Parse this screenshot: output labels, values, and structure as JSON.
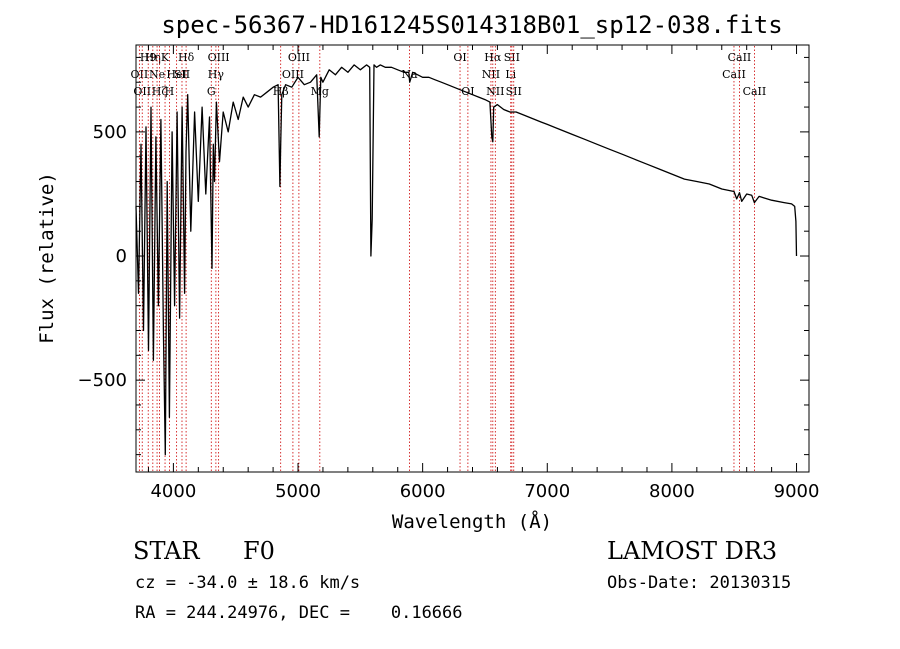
{
  "chart_data": {
    "type": "line",
    "title": "spec-56367-HD161245S014318B01_sp12-038.fits",
    "xlabel": "Wavelength (Å)",
    "ylabel": "Flux (relative)",
    "xlim": [
      3700,
      9100
    ],
    "ylim": [
      -870,
      850
    ],
    "x_ticks": [
      4000,
      5000,
      6000,
      7000,
      8000,
      9000
    ],
    "y_ticks": [
      -500,
      0,
      500
    ],
    "grid": false,
    "series": [
      {
        "name": "flux",
        "x": [
          3700,
          3720,
          3740,
          3760,
          3780,
          3800,
          3820,
          3840,
          3860,
          3880,
          3900,
          3920,
          3935,
          3950,
          3968,
          3990,
          4010,
          4030,
          4050,
          4070,
          4090,
          4101,
          4115,
          4140,
          4170,
          4200,
          4230,
          4260,
          4290,
          4310,
          4320,
          4330,
          4345,
          4370,
          4400,
          4440,
          4480,
          4520,
          4560,
          4600,
          4650,
          4700,
          4750,
          4800,
          4840,
          4855,
          4861,
          4870,
          4900,
          4950,
          5000,
          5050,
          5100,
          5150,
          5170,
          5183,
          5200,
          5250,
          5300,
          5350,
          5400,
          5450,
          5500,
          5550,
          5575,
          5585,
          5595,
          5610,
          5630,
          5660,
          5700,
          5750,
          5800,
          5850,
          5889,
          5896,
          5920,
          5960,
          6000,
          6050,
          6100,
          6150,
          6200,
          6250,
          6300,
          6350,
          6400,
          6450,
          6500,
          6540,
          6555,
          6563,
          6570,
          6600,
          6650,
          6700,
          6750,
          6800,
          6850,
          6900,
          6950,
          7000,
          7100,
          7200,
          7300,
          7400,
          7500,
          7600,
          7700,
          7800,
          7900,
          8000,
          8100,
          8200,
          8300,
          8400,
          8498,
          8520,
          8542,
          8560,
          8600,
          8640,
          8662,
          8700,
          8800,
          8900,
          8960,
          8985,
          8995,
          9000
        ],
        "values": [
          200,
          -150,
          450,
          -300,
          520,
          -380,
          600,
          -420,
          480,
          -200,
          550,
          -300,
          -800,
          300,
          -650,
          500,
          -200,
          580,
          -250,
          600,
          -150,
          420,
          650,
          100,
          580,
          220,
          600,
          250,
          560,
          -50,
          450,
          300,
          620,
          380,
          580,
          500,
          620,
          550,
          640,
          600,
          650,
          640,
          660,
          680,
          690,
          280,
          450,
          650,
          690,
          680,
          720,
          690,
          700,
          730,
          480,
          720,
          700,
          750,
          730,
          760,
          740,
          770,
          750,
          770,
          760,
          0,
          150,
          770,
          760,
          770,
          760,
          760,
          750,
          740,
          740,
          700,
          740,
          730,
          720,
          720,
          710,
          700,
          690,
          680,
          670,
          660,
          650,
          640,
          630,
          620,
          480,
          460,
          600,
          610,
          590,
          580,
          580,
          570,
          560,
          550,
          540,
          530,
          510,
          490,
          470,
          450,
          430,
          410,
          390,
          370,
          350,
          330,
          310,
          300,
          290,
          270,
          260,
          230,
          255,
          220,
          250,
          245,
          215,
          240,
          225,
          215,
          210,
          200,
          140,
          0
        ]
      }
    ],
    "line_markers": [
      {
        "x": 3727,
        "label": "OII",
        "row": 1
      },
      {
        "x": 3750,
        "label": "OII",
        "row": 2
      },
      {
        "x": 3798,
        "label": "H9",
        "row": 0
      },
      {
        "x": 3835,
        "label": "Hη",
        "row": 0
      },
      {
        "x": 3869,
        "label": "Ne",
        "row": 1
      },
      {
        "x": 3889,
        "label": "Hζ",
        "row": 2
      },
      {
        "x": 3933,
        "label": "K",
        "row": 0
      },
      {
        "x": 3968,
        "label": "H",
        "row": 2
      },
      {
        "x": 4026,
        "label": "HeI",
        "row": 1
      },
      {
        "x": 4069,
        "label": "SII",
        "row": 1
      },
      {
        "x": 4102,
        "label": "Hδ",
        "row": 0
      },
      {
        "x": 4304,
        "label": "G",
        "row": 2
      },
      {
        "x": 4341,
        "label": "Hγ",
        "row": 1
      },
      {
        "x": 4363,
        "label": "OIII",
        "row": 0
      },
      {
        "x": 4861,
        "label": "Hβ",
        "row": 2
      },
      {
        "x": 4959,
        "label": "OIII",
        "row": 1
      },
      {
        "x": 5007,
        "label": "OIII",
        "row": 0
      },
      {
        "x": 5175,
        "label": "Mg",
        "row": 2
      },
      {
        "x": 5894,
        "label": "Na",
        "row": 1
      },
      {
        "x": 6300,
        "label": "OI",
        "row": 0
      },
      {
        "x": 6363,
        "label": "OI",
        "row": 2
      },
      {
        "x": 6548,
        "label": "NII",
        "row": 1
      },
      {
        "x": 6563,
        "label": "Hα",
        "row": 0
      },
      {
        "x": 6583,
        "label": "NII",
        "row": 2
      },
      {
        "x": 6707,
        "label": "Li",
        "row": 1
      },
      {
        "x": 6716,
        "label": "SII",
        "row": 0
      },
      {
        "x": 6731,
        "label": "SII",
        "row": 2
      },
      {
        "x": 8498,
        "label": "CaII",
        "row": 1
      },
      {
        "x": 8542,
        "label": "CaII",
        "row": 0
      },
      {
        "x": 8662,
        "label": "CaII",
        "row": 2
      }
    ]
  },
  "info": {
    "object_class": "STAR",
    "subclass": "F0",
    "redshift_text": "cz = -34.0 ± 18.6 km/s",
    "coords_text": "RA = 244.24976, DEC =    0.16666",
    "survey": "LAMOST DR3",
    "obs_date": "Obs-Date: 20130315"
  },
  "colors": {
    "axis": "#000000",
    "spectrum": "#000000",
    "marker_line": "#cc0000"
  }
}
